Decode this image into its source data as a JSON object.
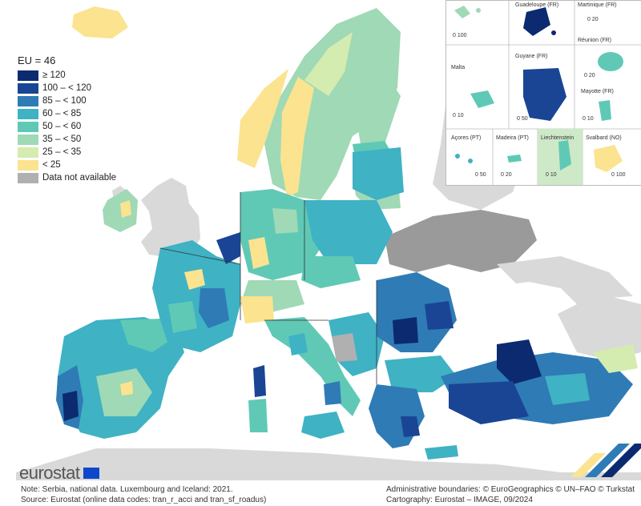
{
  "legend": {
    "title": "EU = 46",
    "items": [
      {
        "label": "≥ 120",
        "color": "#0b2a6f"
      },
      {
        "label": "100 – < 120",
        "color": "#1a4594"
      },
      {
        "label": "85 – < 100",
        "color": "#2f7bb5"
      },
      {
        "label": "60 – < 85",
        "color": "#3fb2c4"
      },
      {
        "label": "50 – < 60",
        "color": "#5fc9b6"
      },
      {
        "label": "35 – < 50",
        "color": "#9fd9b6"
      },
      {
        "label": "25 – < 35",
        "color": "#d4ecb0"
      },
      {
        "label": "< 25",
        "color": "#fbe38f"
      },
      {
        "label": "Data not available",
        "color": "#b0b0b0"
      }
    ]
  },
  "insets": [
    {
      "name": "Guadeloupe (FR)",
      "scale": "0 100"
    },
    {
      "name": "Martinique (FR)",
      "scale": "0 20"
    },
    {
      "name": "Malta",
      "scale": "0 10"
    },
    {
      "name": "Guyane (FR)",
      "scale": "0 50"
    },
    {
      "name": "Réunion (FR)",
      "scale": "0 20"
    },
    {
      "name": "Mayotte (FR)",
      "scale": "0 10"
    },
    {
      "name": "Açores (PT)",
      "scale": "0 50"
    },
    {
      "name": "Madeira (PT)",
      "scale": "0 20"
    },
    {
      "name": "Liechtenstein",
      "scale": "0 10"
    },
    {
      "name": "Svalbard (NO)",
      "scale": "0 100"
    }
  ],
  "logo": "eurostat",
  "footer": {
    "note": "Note: Serbia, national data. Luxembourg and Iceland: 2021.",
    "source": "Source: Eurostat (online data codes: tran_r_acci and tran_sf_roadus)",
    "boundaries": "Administrative boundaries: © EuroGeographics © UN–FAO © Turkstat",
    "cartography": "Cartography: Eurostat – IMAGE, 09/2024"
  },
  "colors": {
    "sea": "#ffffff",
    "non_eu": "#d9d9d9",
    "border": "#ffffff",
    "national_border": "#333333"
  }
}
